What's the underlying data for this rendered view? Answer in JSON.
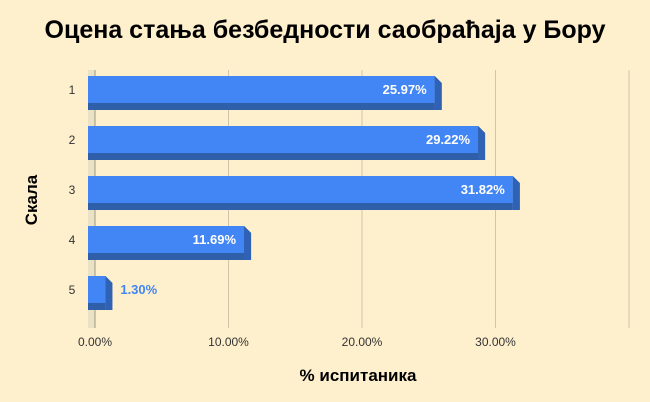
{
  "chart_data": {
    "type": "bar",
    "orientation": "horizontal",
    "title": "Оцена стања безбедности саобраћаја у Бору",
    "xlabel": "% испитаника",
    "ylabel": "Скала",
    "categories": [
      "1",
      "2",
      "3",
      "4",
      "5"
    ],
    "values": [
      25.97,
      29.22,
      31.82,
      11.69,
      1.3
    ],
    "value_labels": [
      "25.97%",
      "29.22%",
      "31.82%",
      "11.69%",
      "1.30%"
    ],
    "xticks": [
      "0.00%",
      "10.00%",
      "20.00%",
      "30.00%"
    ],
    "xlim": [
      0,
      40
    ],
    "grid": "vertical",
    "legend": "none",
    "colors": {
      "bar_front": "#4285f4",
      "bar_top": "#6fa2f7",
      "bar_side": "#2f62b5",
      "bar_bottom": "#2f5fa8",
      "background": "#fef0cd",
      "label_inside": "#ffffff",
      "label_outside": "#4285f4",
      "gridline": "#cfc6ab"
    }
  }
}
